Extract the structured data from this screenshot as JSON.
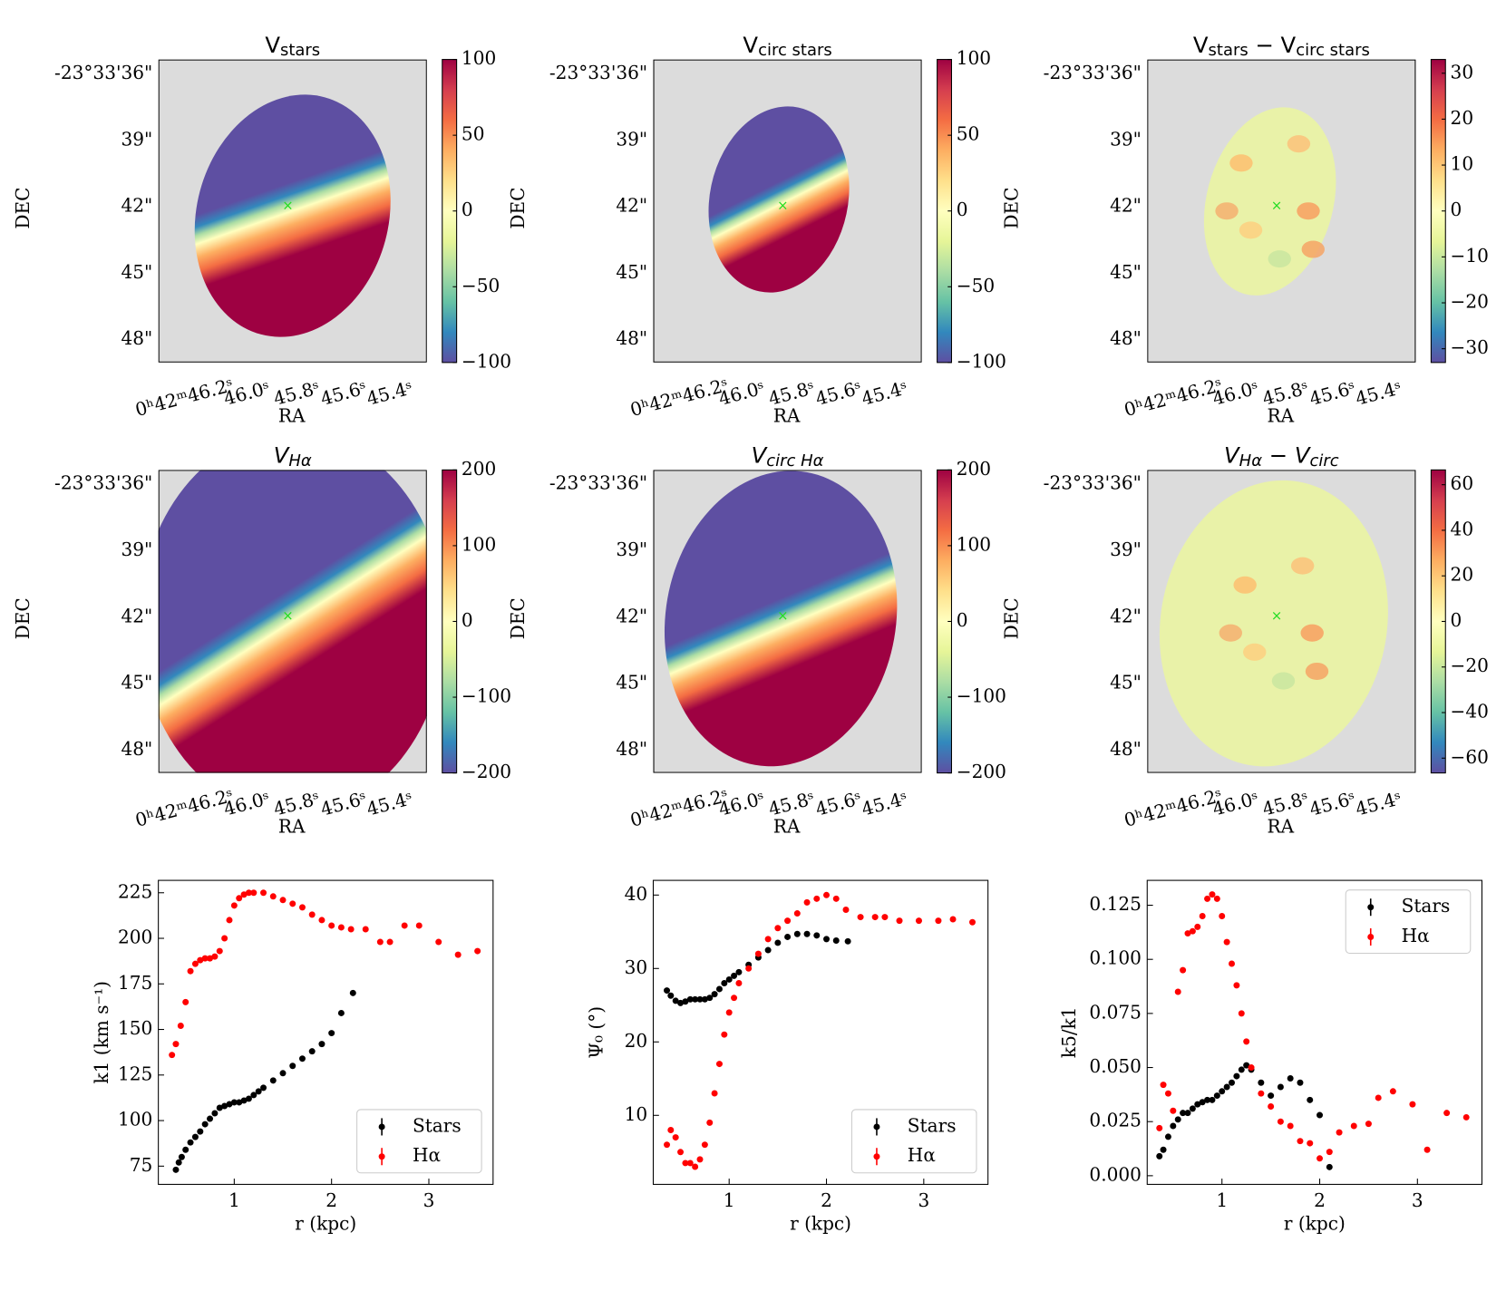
{
  "maps": [
    {
      "title": [
        {
          "text": "V"
        },
        {
          "text": "stars",
          "sub": true
        }
      ],
      "cbar": {
        "lim": [
          -100,
          100
        ],
        "ticks": [
          100,
          50,
          0,
          {
            "value": -50,
            "label": "−50"
          },
          {
            "value": -100,
            "label": "−100"
          }
        ]
      },
      "xlabel": "RA",
      "ylabel": "DEC",
      "dec_ticks": [
        "-23°33'36\"",
        "39\"",
        "42\"",
        "45\"",
        "48\""
      ],
      "ra_ticks": [
        "0ʰ42ᵐ46.2ˢ",
        "46.0ˢ",
        "45.8ˢ",
        "45.6ˢ",
        "45.4ˢ"
      ]
    },
    {
      "title": [
        {
          "text": "V"
        },
        {
          "text": "circ stars",
          "sub": true
        }
      ],
      "cbar": {
        "lim": [
          -100,
          100
        ],
        "ticks": [
          100,
          50,
          0,
          {
            "value": -50,
            "label": "−50"
          },
          {
            "value": -100,
            "label": "−100"
          }
        ]
      },
      "xlabel": "RA",
      "ylabel": "DEC",
      "dec_ticks": [
        "-23°33'36\"",
        "39\"",
        "42\"",
        "45\"",
        "48\""
      ],
      "ra_ticks": [
        "0ʰ42ᵐ46.2ˢ",
        "46.0ˢ",
        "45.8ˢ",
        "45.6ˢ",
        "45.4ˢ"
      ]
    },
    {
      "title": [
        {
          "text": "V"
        },
        {
          "text": "stars",
          "sub": true
        },
        {
          "text": " − V"
        },
        {
          "text": "circ stars",
          "sub": true
        }
      ],
      "cbar": {
        "lim": [
          -33,
          33
        ],
        "ticks": [
          30,
          20,
          10,
          0,
          {
            "value": -10,
            "label": "−10"
          },
          {
            "value": -20,
            "label": "−20"
          },
          {
            "value": -30,
            "label": "−30"
          }
        ]
      },
      "xlabel": "RA",
      "ylabel": "DEC",
      "dec_ticks": [
        "-23°33'36\"",
        "39\"",
        "42\"",
        "45\"",
        "48\""
      ],
      "ra_ticks": [
        "0ʰ42ᵐ46.2ˢ",
        "46.0ˢ",
        "45.8ˢ",
        "45.6ˢ",
        "45.4ˢ"
      ]
    },
    {
      "title": [
        {
          "text": "V"
        },
        {
          "text": "Hα",
          "sub": true
        }
      ],
      "title_italic": true,
      "cbar": {
        "lim": [
          -200,
          200
        ],
        "ticks": [
          200,
          100,
          0,
          {
            "value": -100,
            "label": "−100"
          },
          {
            "value": -200,
            "label": "−200"
          }
        ]
      },
      "xlabel": "RA",
      "ylabel": "DEC",
      "dec_ticks": [
        "-23°33'36\"",
        "39\"",
        "42\"",
        "45\"",
        "48\""
      ],
      "ra_ticks": [
        "0ʰ42ᵐ46.2ˢ",
        "46.0ˢ",
        "45.8ˢ",
        "45.6ˢ",
        "45.4ˢ"
      ]
    },
    {
      "title": [
        {
          "text": "V"
        },
        {
          "text": "circ Hα",
          "sub": true
        }
      ],
      "title_italic": true,
      "cbar": {
        "lim": [
          -200,
          200
        ],
        "ticks": [
          200,
          100,
          0,
          {
            "value": -100,
            "label": "−100"
          },
          {
            "value": -200,
            "label": "−200"
          }
        ]
      },
      "xlabel": "RA",
      "ylabel": "DEC",
      "dec_ticks": [
        "-23°33'36\"",
        "39\"",
        "42\"",
        "45\"",
        "48\""
      ],
      "ra_ticks": [
        "0ʰ42ᵐ46.2ˢ",
        "46.0ˢ",
        "45.8ˢ",
        "45.6ˢ",
        "45.4ˢ"
      ]
    },
    {
      "title": [
        {
          "text": "V"
        },
        {
          "text": "Hα",
          "sub": true
        },
        {
          "text": " − V"
        },
        {
          "text": "circ",
          "sub": true
        }
      ],
      "title_italic": true,
      "cbar": {
        "lim": [
          -66.5,
          66.5
        ],
        "ticks": [
          60,
          40,
          20,
          0,
          {
            "value": -20,
            "label": "−20"
          },
          {
            "value": -40,
            "label": "−40"
          },
          {
            "value": -60,
            "label": "−60"
          }
        ]
      },
      "xlabel": "RA",
      "ylabel": "DEC",
      "dec_ticks": [
        "-23°33'36\"",
        "39\"",
        "42\"",
        "45\"",
        "48\""
      ],
      "ra_ticks": [
        "0ʰ42ᵐ46.2ˢ",
        "46.0ˢ",
        "45.8ˢ",
        "45.6ˢ",
        "45.4ˢ"
      ]
    }
  ],
  "chart_data": [
    {
      "type": "scatter",
      "xlabel": "r (kpc)",
      "ylabel": "k1 (km s⁻¹)",
      "xlim": [
        0.22,
        3.66
      ],
      "ylim": [
        65,
        231.8
      ],
      "xticks": [
        1,
        2,
        3
      ],
      "yticks": [
        75,
        100,
        125,
        150,
        175,
        200,
        225
      ],
      "legend": "lower right",
      "series": [
        {
          "name": "Stars",
          "color": "#000000",
          "x": [
            0.4,
            0.43,
            0.46,
            0.5,
            0.55,
            0.6,
            0.65,
            0.7,
            0.75,
            0.8,
            0.85,
            0.9,
            0.95,
            1.0,
            1.05,
            1.1,
            1.15,
            1.2,
            1.25,
            1.3,
            1.4,
            1.5,
            1.6,
            1.7,
            1.8,
            1.9,
            2.0,
            2.1,
            2.22
          ],
          "values": [
            73,
            77,
            80,
            84,
            88,
            91,
            94,
            98,
            101,
            104,
            107,
            108,
            109,
            110,
            110,
            111,
            112,
            114,
            116,
            118,
            122,
            126,
            130,
            134,
            138,
            142,
            148,
            159,
            170
          ]
        },
        {
          "name": "Hα",
          "color": "#ff0000",
          "x": [
            0.36,
            0.4,
            0.45,
            0.5,
            0.55,
            0.6,
            0.65,
            0.7,
            0.75,
            0.8,
            0.85,
            0.9,
            0.95,
            1.0,
            1.05,
            1.1,
            1.15,
            1.2,
            1.3,
            1.4,
            1.5,
            1.6,
            1.7,
            1.8,
            1.9,
            2.0,
            2.1,
            2.2,
            2.35,
            2.5,
            2.6,
            2.75,
            2.9,
            3.1,
            3.3,
            3.5
          ],
          "values": [
            136,
            142,
            152,
            165,
            182,
            186,
            188,
            189,
            189,
            190,
            193,
            200,
            210,
            218,
            222,
            224,
            225,
            225,
            225,
            223,
            221,
            219,
            217,
            213,
            210,
            207,
            206,
            205,
            205,
            198,
            198,
            207,
            207,
            198,
            191,
            193
          ]
        }
      ]
    },
    {
      "type": "scatter",
      "xlabel": "r (kpc)",
      "ylabel": "Ψ₀ (°)",
      "xlim": [
        0.22,
        3.66
      ],
      "ylim": [
        0.6,
        42
      ],
      "xticks": [
        1,
        2,
        3
      ],
      "yticks": [
        10,
        20,
        30,
        40
      ],
      "legend": "lower right",
      "series": [
        {
          "name": "Stars",
          "color": "#000000",
          "x": [
            0.36,
            0.4,
            0.45,
            0.5,
            0.55,
            0.6,
            0.65,
            0.7,
            0.75,
            0.8,
            0.85,
            0.9,
            0.95,
            1.0,
            1.05,
            1.1,
            1.2,
            1.3,
            1.4,
            1.5,
            1.6,
            1.7,
            1.8,
            1.9,
            2.0,
            2.1,
            2.22
          ],
          "values": [
            27,
            26.3,
            25.6,
            25.3,
            25.5,
            25.8,
            25.8,
            25.8,
            25.8,
            26,
            26.5,
            27.2,
            28,
            28.5,
            29,
            29.5,
            30.5,
            31.5,
            32.5,
            33.5,
            34.3,
            34.7,
            34.7,
            34.5,
            34,
            33.8,
            33.7
          ]
        },
        {
          "name": "Hα",
          "color": "#ff0000",
          "x": [
            0.36,
            0.4,
            0.45,
            0.5,
            0.55,
            0.6,
            0.65,
            0.7,
            0.75,
            0.8,
            0.85,
            0.9,
            0.95,
            1.0,
            1.05,
            1.1,
            1.2,
            1.3,
            1.4,
            1.5,
            1.6,
            1.7,
            1.8,
            1.9,
            2.0,
            2.1,
            2.2,
            2.35,
            2.5,
            2.6,
            2.75,
            2.95,
            3.15,
            3.3,
            3.5
          ],
          "values": [
            6,
            8,
            7,
            5,
            3.5,
            3.5,
            3,
            4,
            6,
            9,
            13,
            17,
            21,
            24,
            26,
            28,
            30,
            32,
            34,
            35.5,
            36.5,
            37.5,
            39,
            39.5,
            40,
            39.5,
            38,
            37,
            37,
            37,
            36.5,
            36.5,
            36.5,
            36.7,
            36.3
          ]
        }
      ]
    },
    {
      "type": "scatter",
      "xlabel": "r (kpc)",
      "ylabel": "k5/k1",
      "xlim": [
        0.235,
        3.66
      ],
      "ylim": [
        -0.004,
        0.1365
      ],
      "xticks": [
        1,
        2,
        3
      ],
      "yticks": [
        {
          "value": 0,
          "label": "0.000"
        },
        0.025,
        {
          "value": 0.05,
          "label": "0.050"
        },
        0.075,
        {
          "value": 0.1,
          "label": "0.100"
        },
        0.125
      ],
      "legend": "upper right",
      "series": [
        {
          "name": "Stars",
          "color": "#000000",
          "x": [
            0.36,
            0.4,
            0.45,
            0.5,
            0.55,
            0.6,
            0.65,
            0.7,
            0.75,
            0.8,
            0.85,
            0.9,
            0.95,
            1.0,
            1.05,
            1.1,
            1.15,
            1.2,
            1.25,
            1.3,
            1.4,
            1.5,
            1.6,
            1.7,
            1.8,
            1.9,
            2.0,
            2.1
          ],
          "values": [
            0.009,
            0.012,
            0.018,
            0.023,
            0.026,
            0.029,
            0.029,
            0.031,
            0.033,
            0.034,
            0.035,
            0.035,
            0.037,
            0.039,
            0.041,
            0.043,
            0.046,
            0.049,
            0.051,
            0.049,
            0.043,
            0.037,
            0.041,
            0.045,
            0.043,
            0.035,
            0.028,
            0.004
          ]
        },
        {
          "name": "Hα",
          "color": "#ff0000",
          "x": [
            0.36,
            0.4,
            0.45,
            0.5,
            0.55,
            0.6,
            0.65,
            0.7,
            0.75,
            0.8,
            0.85,
            0.9,
            0.95,
            1.0,
            1.05,
            1.1,
            1.15,
            1.2,
            1.25,
            1.3,
            1.4,
            1.5,
            1.6,
            1.7,
            1.8,
            1.9,
            2.0,
            2.1,
            2.2,
            2.35,
            2.5,
            2.6,
            2.75,
            2.95,
            3.1,
            3.3,
            3.5
          ],
          "values": [
            0.022,
            0.042,
            0.038,
            0.03,
            0.085,
            0.095,
            0.112,
            0.113,
            0.115,
            0.12,
            0.128,
            0.13,
            0.128,
            0.12,
            0.108,
            0.098,
            0.088,
            0.075,
            0.062,
            0.05,
            0.038,
            0.032,
            0.025,
            0.023,
            0.016,
            0.015,
            0.008,
            0.011,
            0.02,
            0.023,
            0.024,
            0.036,
            0.039,
            0.033,
            0.012,
            0.029,
            0.027
          ]
        }
      ]
    }
  ]
}
